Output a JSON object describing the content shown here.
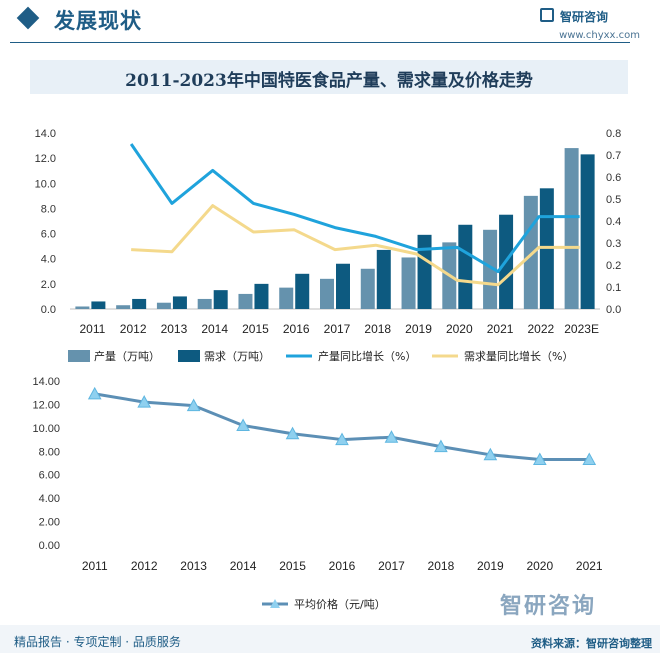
{
  "header": {
    "section_title": "发展现状",
    "logo_text": "智研咨询",
    "site_url": "www.chyxx.com"
  },
  "footer": {
    "left_text": "精品报告 · 专项定制 · 品质服务",
    "logo_text": "智研咨询",
    "source_text": "资料来源：智研咨询整理"
  },
  "colors": {
    "production": "#6592ad",
    "demand": "#0d5a80",
    "production_growth": "#1fa3dc",
    "demand_growth": "#f4d98c",
    "price": "#5c8fb5",
    "price_marker": "#8fd0ef"
  },
  "chart_data": [
    {
      "type": "bar",
      "title": "2011-2023年中国特医食品产量、需求量及价格走势",
      "categories": [
        "2011",
        "2012",
        "2013",
        "2014",
        "2015",
        "2016",
        "2017",
        "2018",
        "2019",
        "2020",
        "2021",
        "2022",
        "2023E"
      ],
      "series": [
        {
          "name": "产量（万吨）",
          "type": "bar",
          "axis": "left",
          "values": [
            0.2,
            0.3,
            0.5,
            0.8,
            1.2,
            1.7,
            2.4,
            3.2,
            4.1,
            5.3,
            6.3,
            9.0,
            12.8
          ]
        },
        {
          "name": "需求（万吨）",
          "type": "bar",
          "axis": "left",
          "values": [
            0.6,
            0.8,
            1.0,
            1.5,
            2.0,
            2.8,
            3.6,
            4.7,
            5.9,
            6.7,
            7.5,
            9.6,
            12.3
          ]
        },
        {
          "name": "产量同比增长（%）",
          "type": "line",
          "axis": "right",
          "values": [
            null,
            0.75,
            0.48,
            0.63,
            0.48,
            0.43,
            0.37,
            0.33,
            0.27,
            0.28,
            0.17,
            0.42,
            0.42
          ]
        },
        {
          "name": "需求量同比增长（%）",
          "type": "line",
          "axis": "right",
          "values": [
            null,
            0.27,
            0.26,
            0.47,
            0.35,
            0.36,
            0.27,
            0.29,
            0.25,
            0.13,
            0.11,
            0.28,
            0.28
          ]
        }
      ],
      "left_ticks": [
        "0.0",
        "2.0",
        "4.0",
        "6.0",
        "8.0",
        "10.0",
        "12.0",
        "14.0"
      ],
      "right_ticks": [
        "0.0",
        "0.1",
        "0.2",
        "0.3",
        "0.4",
        "0.5",
        "0.6",
        "0.7",
        "0.8"
      ],
      "ylim_left": [
        0,
        14
      ],
      "ylim_right": [
        0,
        0.8
      ],
      "grid": false,
      "legend": "bottom"
    },
    {
      "type": "line",
      "categories": [
        "2011",
        "2012",
        "2013",
        "2014",
        "2015",
        "2016",
        "2017",
        "2018",
        "2019",
        "2020",
        "2021"
      ],
      "series": [
        {
          "name": "平均价格（元/吨）",
          "values": [
            12.9,
            12.2,
            11.9,
            10.2,
            9.5,
            9.0,
            9.2,
            8.4,
            7.7,
            7.3,
            7.3
          ]
        }
      ],
      "y_ticks": [
        "0.00",
        "2.00",
        "4.00",
        "6.00",
        "8.00",
        "10.00",
        "12.00",
        "14.00"
      ],
      "ylim": [
        0,
        14
      ],
      "grid": false,
      "legend": "bottom"
    }
  ]
}
